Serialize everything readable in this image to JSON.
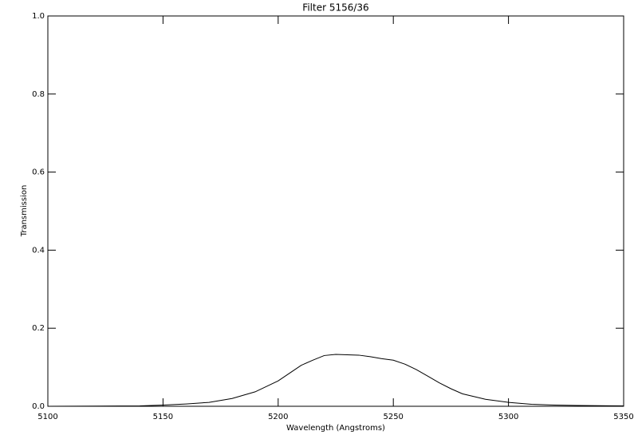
{
  "chart_data": {
    "type": "line",
    "title": "Filter 5156/36",
    "x_label": "Wavelength (Angstroms)",
    "y_label": "Transmission",
    "x": [
      5100,
      5140,
      5150,
      5160,
      5170,
      5180,
      5190,
      5200,
      5205,
      5210,
      5215,
      5220,
      5225,
      5230,
      5235,
      5240,
      5245,
      5250,
      5255,
      5260,
      5265,
      5270,
      5275,
      5280,
      5290,
      5300,
      5310,
      5320,
      5330,
      5350
    ],
    "series": [
      {
        "color": "#000000",
        "values": [
          0.0,
          0.001,
          0.003,
          0.006,
          0.01,
          0.02,
          0.037,
          0.065,
          0.085,
          0.105,
          0.118,
          0.13,
          0.133,
          0.132,
          0.131,
          0.127,
          0.122,
          0.118,
          0.108,
          0.094,
          0.077,
          0.06,
          0.045,
          0.032,
          0.018,
          0.01,
          0.005,
          0.003,
          0.002,
          0.001
        ]
      }
    ],
    "xlim": [
      5100,
      5350
    ],
    "xticks": [
      5100,
      5150,
      5200,
      5250,
      5300,
      5350
    ],
    "ylim": [
      0,
      1
    ],
    "yticks": [
      {
        "value": 0,
        "label": "0.0"
      },
      0.2,
      0.4,
      0.6,
      0.8,
      {
        "value": 1,
        "label": "1.0"
      }
    ]
  }
}
